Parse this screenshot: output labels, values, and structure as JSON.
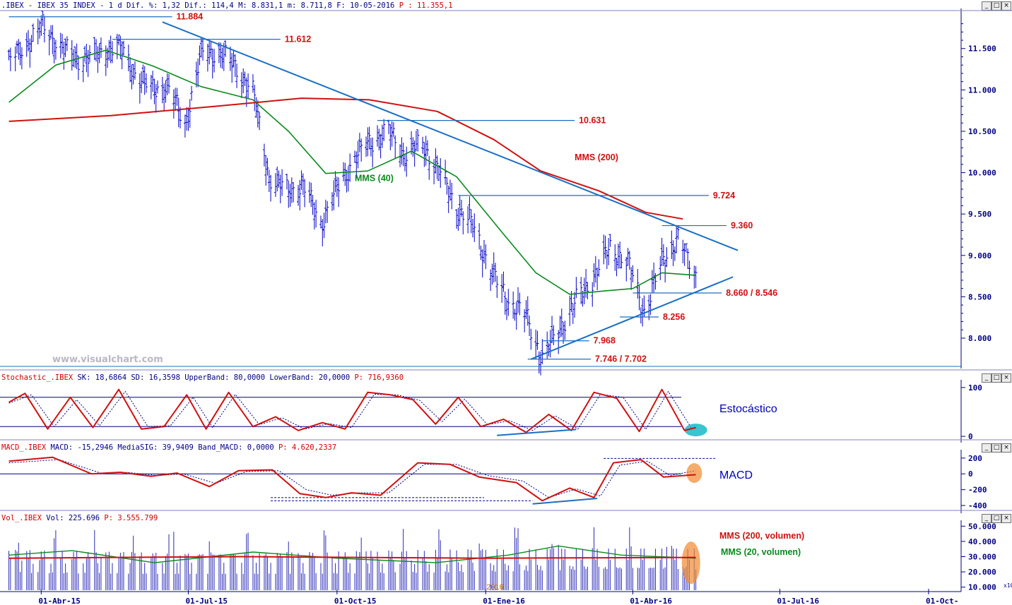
{
  "chart_data": [
    {
      "type": "line",
      "panel": "price",
      "header": {
        "symbol": ".IBEX - IBEX 35 INDEX -",
        "period": "1 d",
        "dif_pct": "Dif. %: 1,32",
        "dif": "Dif.: 114,4",
        "max": "M: 8.831,1",
        "min": "m: 8.711,8",
        "date": "F: 10-05-2016",
        "price": "P : 11.355,1"
      },
      "title": "",
      "xlabel": "",
      "ylabel": "",
      "ylim": [
        7650,
        11950
      ],
      "y_ticks": [
        8000,
        8500,
        9000,
        9500,
        10000,
        10500,
        11000,
        11500
      ],
      "y_tick_labels": [
        "8.000",
        "8.500",
        "9.000",
        "9.500",
        "10.000",
        "10.500",
        "11.000",
        "11.500"
      ],
      "x_ticks": [
        {
          "date": "2015-04-01",
          "label": "01-Abr-15"
        },
        {
          "date": "2015-07-01",
          "label": "01-Jul-15"
        },
        {
          "date": "2015-10-01",
          "label": "01-Oct-15"
        },
        {
          "date": "2016-01-01",
          "label": "01-Ene-16"
        },
        {
          "date": "2016-04-01",
          "label": "01-Abr-16"
        },
        {
          "date": "2016-07-01",
          "label": "01-Jul-16"
        },
        {
          "date": "2016-10-01",
          "label": "01-Oct-"
        }
      ],
      "x_range": [
        "2015-03-10",
        "2016-10-15"
      ],
      "series": [
        {
          "name": "",
          "kind": "ohlc",
          "color": "#0000c8",
          "x": [
            "2015-03-12",
            "2015-03-23",
            "2015-04-02",
            "2015-04-13",
            "2015-04-24",
            "2015-05-06",
            "2015-05-18",
            "2015-05-28",
            "2015-06-08",
            "2015-06-18",
            "2015-06-29",
            "2015-07-09",
            "2015-07-20",
            "2015-07-30",
            "2015-08-10",
            "2015-08-20",
            "2015-08-31",
            "2015-09-10",
            "2015-09-21",
            "2015-10-01",
            "2015-10-12",
            "2015-10-22",
            "2015-11-02",
            "2015-11-12",
            "2015-11-23",
            "2015-12-03",
            "2015-12-14",
            "2015-12-24",
            "2016-01-05",
            "2016-01-15",
            "2016-01-26",
            "2016-02-05",
            "2016-02-16",
            "2016-02-26",
            "2016-03-08",
            "2016-03-18",
            "2016-03-29",
            "2016-04-08",
            "2016-04-19",
            "2016-04-29",
            "2016-05-10"
          ],
          "close": [
            11350,
            11560,
            11780,
            11510,
            11380,
            11420,
            11560,
            11240,
            11000,
            11050,
            10580,
            11440,
            11460,
            11280,
            10980,
            9950,
            9780,
            9850,
            9380,
            9800,
            10180,
            10380,
            10500,
            10220,
            10350,
            10020,
            9580,
            9370,
            8780,
            8450,
            8270,
            7760,
            8130,
            8450,
            8750,
            9100,
            8920,
            8320,
            8920,
            9220,
            8750
          ],
          "high": [
            11450,
            11680,
            11884,
            11650,
            11540,
            11612,
            11640,
            11500,
            11250,
            11180,
            11120,
            11590,
            11612,
            11500,
            11300,
            10700,
            10150,
            10020,
            9750,
            10080,
            10360,
            10631,
            10600,
            10500,
            10450,
            10250,
            9920,
            9724,
            9300,
            8850,
            8600,
            8200,
            8350,
            8700,
            9200,
            9220,
            9050,
            8700,
            9360,
            9300,
            8831
          ]
        },
        {
          "name": "MMS (40)",
          "kind": "sma",
          "color": "#0a8a1e",
          "x": [
            "2015-03-12",
            "2015-04-10",
            "2015-05-11",
            "2015-06-09",
            "2015-07-09",
            "2015-08-10",
            "2015-09-01",
            "2015-09-24",
            "2015-10-20",
            "2015-11-16",
            "2015-12-14",
            "2016-01-11",
            "2016-02-01",
            "2016-02-22",
            "2016-03-14",
            "2016-04-01",
            "2016-04-19",
            "2016-05-10"
          ],
          "values": [
            10850,
            11300,
            11480,
            11290,
            11040,
            10880,
            10500,
            9990,
            10020,
            10260,
            9950,
            9280,
            8790,
            8530,
            8570,
            8600,
            8790,
            8760
          ]
        },
        {
          "name": "MMS (200)",
          "kind": "sma",
          "color": "#d01010",
          "x": [
            "2015-03-12",
            "2015-05-14",
            "2015-07-17",
            "2015-09-09",
            "2015-10-21",
            "2015-12-02",
            "2016-01-06",
            "2016-02-04",
            "2016-03-11",
            "2016-04-09",
            "2016-05-02"
          ],
          "values": [
            10620,
            10690,
            10800,
            10900,
            10880,
            10740,
            10400,
            10020,
            9780,
            9520,
            9440
          ]
        }
      ],
      "annotations": [
        {
          "label": "11.884",
          "value": 11884,
          "x_from": "2015-03-12",
          "x_to": "2015-06-21"
        },
        {
          "label": "11.612",
          "value": 11612,
          "x_from": "2015-05-15",
          "x_to": "2015-08-27"
        },
        {
          "label": "10.631",
          "value": 10631,
          "x_from": "2015-10-26",
          "x_to": "2016-02-25"
        },
        {
          "label": "9.724",
          "value": 9724,
          "x_from": "2015-12-15",
          "x_to": "2016-05-18"
        },
        {
          "label": "9.360",
          "value": 9360,
          "x_from": "2016-04-19",
          "x_to": "2016-05-29"
        },
        {
          "label": "8.660 / 8.546",
          "value": 8546,
          "x_from": "2016-04-01",
          "x_to": "2016-05-26"
        },
        {
          "label": "8.256",
          "value": 8256,
          "x_from": "2016-03-24",
          "x_to": "2016-04-17"
        },
        {
          "label": "7.968",
          "value": 7968,
          "x_from": "2016-02-05",
          "x_to": "2016-03-05"
        },
        {
          "label": "7.746 / 7.702",
          "value": 7746,
          "x_from": "2016-01-27",
          "x_to": "2016-03-06"
        }
      ],
      "series_labels": [
        {
          "text": "MMS (40)",
          "color": "#0a8a1e",
          "x": "2015-10-12",
          "y": 9900
        },
        {
          "text": "MMS (200)",
          "color": "#d01010",
          "x": "2016-02-25",
          "y": 10150
        }
      ],
      "trendlines": [
        {
          "x": [
            "2015-06-15",
            "2016-06-05"
          ],
          "y": [
            11820,
            9060
          ],
          "color": "#1b6fc4"
        },
        {
          "x": [
            "2016-01-29",
            "2016-06-02"
          ],
          "y": [
            7746,
            8740
          ],
          "color": "#1b6fc4"
        }
      ],
      "watermark": "www.visualchart.com"
    },
    {
      "type": "line",
      "panel": "stochastic",
      "header": {
        "name": "Stochastic_.IBEX",
        "sk": "SK: 18,6864",
        "sd": "SD: 16,3598",
        "upper": "UpperBand: 80,0000",
        "lower": "LowerBand: 20,0000",
        "p": "P: 716,9360"
      },
      "title": "Estocástico",
      "ylim": [
        -10,
        110
      ],
      "y_ticks": [
        0,
        100
      ],
      "y_tick_labels": [
        "0",
        "100"
      ],
      "bands": [
        80,
        20
      ],
      "series": [
        {
          "name": "SK",
          "color": "#d01010",
          "x": [
            "2015-03-12",
            "2015-03-22",
            "2015-04-05",
            "2015-04-19",
            "2015-05-03",
            "2015-05-19",
            "2015-06-02",
            "2015-06-16",
            "2015-06-30",
            "2015-07-12",
            "2015-07-26",
            "2015-08-10",
            "2015-08-24",
            "2015-09-07",
            "2015-09-22",
            "2015-10-06",
            "2015-10-20",
            "2015-11-03",
            "2015-11-17",
            "2015-12-01",
            "2015-12-15",
            "2015-12-29",
            "2016-01-12",
            "2016-01-26",
            "2016-02-09",
            "2016-02-23",
            "2016-03-08",
            "2016-03-22",
            "2016-04-05",
            "2016-04-19",
            "2016-05-03",
            "2016-05-10"
          ],
          "values": [
            70,
            88,
            15,
            80,
            18,
            96,
            15,
            20,
            85,
            15,
            90,
            20,
            40,
            12,
            28,
            15,
            90,
            85,
            75,
            25,
            80,
            20,
            35,
            8,
            45,
            12,
            90,
            78,
            10,
            96,
            12,
            18
          ]
        },
        {
          "name": "SD",
          "color": "#000080",
          "x": [
            "2015-03-12",
            "2015-03-26",
            "2015-04-09",
            "2015-04-23",
            "2015-05-07",
            "2015-05-23",
            "2015-06-06",
            "2015-06-20",
            "2015-07-04",
            "2015-07-16",
            "2015-07-30",
            "2015-08-14",
            "2015-08-28",
            "2015-09-11",
            "2015-09-26",
            "2015-10-10",
            "2015-10-24",
            "2015-11-07",
            "2015-11-21",
            "2015-12-05",
            "2015-12-19",
            "2016-01-02",
            "2016-01-16",
            "2016-01-30",
            "2016-02-13",
            "2016-02-27",
            "2016-03-12",
            "2016-03-26",
            "2016-04-09",
            "2016-04-23",
            "2016-05-07",
            "2016-05-10"
          ],
          "values": [
            68,
            85,
            20,
            75,
            22,
            92,
            20,
            22,
            80,
            18,
            86,
            24,
            38,
            15,
            26,
            18,
            86,
            85,
            74,
            30,
            76,
            24,
            32,
            12,
            42,
            15,
            86,
            80,
            14,
            92,
            18,
            16
          ]
        }
      ]
    },
    {
      "type": "line",
      "panel": "macd",
      "header": {
        "name": "MACD_.IBEX",
        "macd": "MACD: -15,2946",
        "signal": "MediaSIG: 39,9409",
        "band": "Band_MACD: 0,0000",
        "p": "P: 4.620,2337"
      },
      "title": "MACD",
      "ylim": [
        -480,
        270
      ],
      "y_ticks": [
        -400,
        -200,
        0,
        200
      ],
      "y_tick_labels": [
        "-400",
        "-200",
        "0",
        "200"
      ],
      "series": [
        {
          "name": "MACD",
          "color": "#d01010",
          "x": [
            "2015-03-12",
            "2015-04-08",
            "2015-05-02",
            "2015-05-20",
            "2015-06-08",
            "2015-06-24",
            "2015-07-14",
            "2015-08-01",
            "2015-08-22",
            "2015-09-08",
            "2015-09-24",
            "2015-10-10",
            "2015-10-28",
            "2015-11-20",
            "2015-12-10",
            "2015-12-28",
            "2016-01-20",
            "2016-02-05",
            "2016-02-22",
            "2016-03-08",
            "2016-03-20",
            "2016-04-06",
            "2016-04-20",
            "2016-05-10"
          ],
          "values": [
            160,
            210,
            0,
            20,
            -30,
            10,
            -160,
            40,
            50,
            -250,
            -300,
            -240,
            -270,
            140,
            120,
            -40,
            -110,
            -340,
            -180,
            -300,
            140,
            180,
            -40,
            -10
          ]
        },
        {
          "name": "MediaSIG",
          "color": "#000080",
          "x": [
            "2015-03-12",
            "2015-04-12",
            "2015-05-08",
            "2015-05-24",
            "2015-06-12",
            "2015-06-28",
            "2015-07-18",
            "2015-08-06",
            "2015-08-26",
            "2015-09-12",
            "2015-09-28",
            "2015-10-14",
            "2015-11-02",
            "2015-11-24",
            "2015-12-14",
            "2016-01-02",
            "2016-01-24",
            "2016-02-09",
            "2016-02-26",
            "2016-03-12",
            "2016-03-24",
            "2016-04-10",
            "2016-04-24",
            "2016-05-10"
          ],
          "values": [
            140,
            180,
            10,
            18,
            -20,
            0,
            -120,
            30,
            40,
            -200,
            -270,
            -240,
            -240,
            120,
            120,
            -20,
            -90,
            -300,
            -190,
            -280,
            110,
            160,
            -20,
            40
          ]
        }
      ]
    },
    {
      "type": "bar",
      "panel": "volume",
      "header": {
        "name": "Vol_.IBEX",
        "vol": "Vol: 225.696",
        "p": "P: 3.555.799"
      },
      "ylim": [
        8000,
        52000
      ],
      "y_ticks": [
        10000,
        20000,
        30000,
        40000,
        50000
      ],
      "y_tick_labels": [
        "10.000",
        "20.000",
        "30.000",
        "40.000",
        "50.000"
      ],
      "scale_note": "x10",
      "year_label": "2016",
      "series": [
        {
          "name": "MMS (200, volumen)",
          "color": "#d01010",
          "x": [
            "2015-03-12",
            "2015-08-01",
            "2016-01-01",
            "2016-05-10"
          ],
          "values": [
            29000,
            30000,
            29000,
            29500
          ]
        },
        {
          "name": "MMS (20, volumen)",
          "color": "#0a8a1e",
          "x": [
            "2015-03-12",
            "2015-04-20",
            "2015-06-10",
            "2015-08-10",
            "2015-10-01",
            "2015-12-01",
            "2016-01-15",
            "2016-02-15",
            "2016-03-25",
            "2016-05-10"
          ],
          "values": [
            31000,
            34000,
            26000,
            33000,
            29000,
            26000,
            31000,
            37000,
            31000,
            29000
          ]
        }
      ]
    }
  ]
}
